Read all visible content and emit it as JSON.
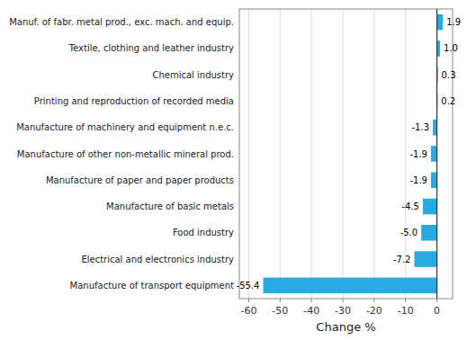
{
  "chart_data": {
    "type": "bar",
    "orientation": "horizontal",
    "categories": [
      "Manufacture of transport equipment",
      "Electrical and electronics industry",
      "Food industry",
      "Manufacture of basic metals",
      "Manufacture of paper and paper products",
      "Manufacture of other non-metallic mineral prod.",
      "Manufacture of machinery and equipment n.e.c.",
      "Printing and reproduction of recorded media",
      "Chemical industry",
      "Textile, clothing and leather industry",
      "Manuf. of fabr. metal prod., exc. mach. and equip."
    ],
    "values": [
      -55.4,
      -7.2,
      -5.0,
      -4.5,
      -1.9,
      -1.9,
      -1.3,
      0.2,
      0.3,
      1.0,
      1.9
    ],
    "value_labels": [
      "-55.4",
      "-7.2",
      "-5.0",
      "-4.5",
      "-1.9",
      "-1.9",
      "-1.3",
      "0.2",
      "0.3",
      "1.0",
      "1.9"
    ],
    "color": "#29abe2",
    "xlabel": "Change %",
    "xlim": [
      -63,
      5
    ],
    "xticks": [
      -60,
      -50,
      -40,
      -30,
      -20,
      -10,
      0
    ],
    "grid": true,
    "data_labels": true
  }
}
